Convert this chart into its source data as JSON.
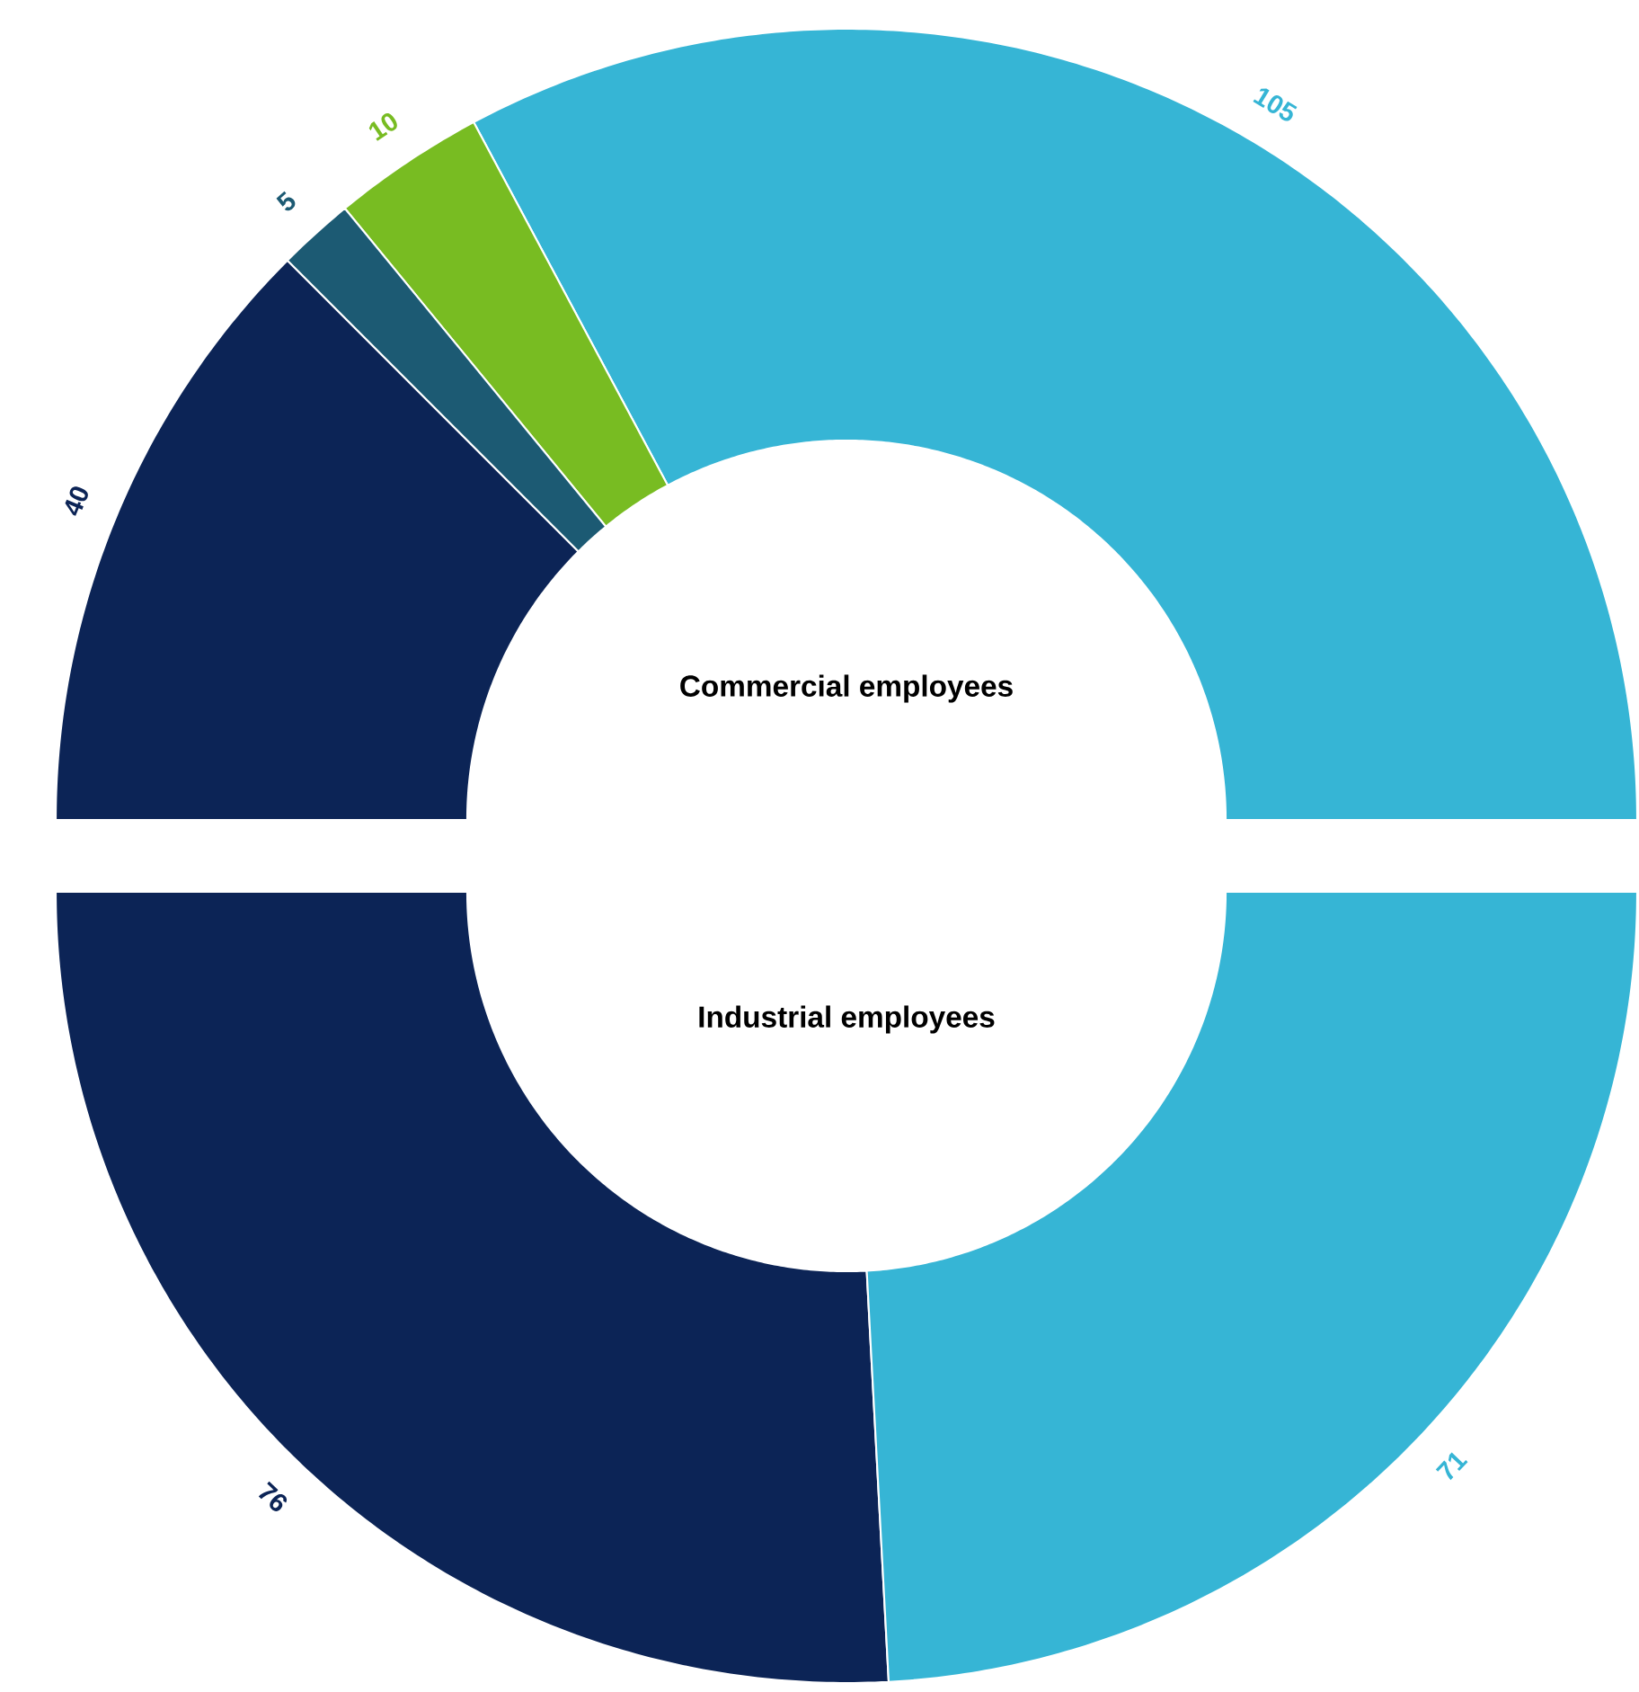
{
  "chart_data": [
    {
      "type": "donut",
      "title": "Commercial employees",
      "categories": [
        null,
        null,
        null,
        null
      ],
      "values": [
        105,
        10,
        5,
        40
      ],
      "colors": [
        "#36b5d5",
        "#78bc22",
        "#1c5a73",
        "#0c2456"
      ],
      "data_labels": true
    },
    {
      "type": "donut",
      "title": "Industrial employees",
      "categories": [
        null,
        null
      ],
      "values": [
        76,
        71
      ],
      "colors": [
        "#0c2456",
        "#36b5d5"
      ],
      "data_labels": true
    }
  ]
}
